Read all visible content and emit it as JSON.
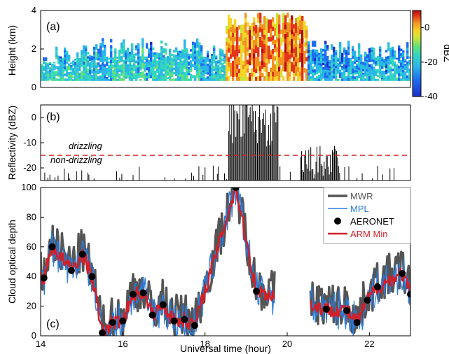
{
  "chart_data": [
    {
      "panel": "(a)",
      "type": "heatmap",
      "ylabel": "Height (km)",
      "xlim": [
        14,
        23
      ],
      "ylim": [
        0,
        4
      ],
      "yticks": [
        "0",
        "2",
        "4"
      ],
      "colorbar": {
        "label": "dBZ",
        "range": [
          -40,
          10
        ],
        "ticks": [
          "0",
          "-20",
          "-40"
        ],
        "colors": [
          "#1d2fc9",
          "#1e6ef0",
          "#2bb6e8",
          "#33d6c0",
          "#62e07a",
          "#c8e63a",
          "#f6d52a",
          "#f29221",
          "#e3351b",
          "#b00c0c"
        ]
      }
    },
    {
      "panel": "(b)",
      "type": "line",
      "ylabel": "Reflectivity (dBZ)",
      "xlim": [
        14,
        23
      ],
      "ylim": [
        -25,
        5
      ],
      "yticks": [
        "0",
        "-10",
        "-20"
      ],
      "threshold": -15,
      "threshold_color": "#d42020",
      "annotation_above": "drizzling",
      "annotation_below": "non-drizzling"
    },
    {
      "panel": "(c)",
      "type": "line",
      "ylabel": "Cloud optical depth",
      "xlabel": "Universal time (hour)",
      "xlim": [
        14,
        23
      ],
      "ylim": [
        0,
        100
      ],
      "xticks": [
        "14",
        "16",
        "18",
        "20",
        "22"
      ],
      "yticks": [
        "0",
        "20",
        "40",
        "60",
        "80",
        "100"
      ],
      "series": [
        {
          "name": "MWR",
          "color": "#555555",
          "style": "thick-line"
        },
        {
          "name": "MPL",
          "color": "#2a7de1",
          "style": "line"
        },
        {
          "name": "AERONET",
          "color": "#000000",
          "style": "dots",
          "x": [
            14.08,
            14.28,
            14.75,
            15.02,
            15.25,
            15.5,
            15.75,
            16.0,
            16.25,
            16.5,
            16.72,
            16.98,
            17.25,
            17.5,
            17.75,
            18.75,
            19.25,
            20.95,
            21.45,
            21.7,
            21.95,
            22.2,
            22.8,
            23.0
          ],
          "y": [
            39,
            60,
            44,
            55,
            40,
            2,
            9,
            10,
            28,
            29,
            14,
            21,
            10,
            11,
            7,
            100,
            30,
            18,
            17,
            9,
            24,
            33,
            42,
            28
          ]
        },
        {
          "name": "ARM Min",
          "color": "#d0202a",
          "style": "line"
        }
      ],
      "legend_position": "top-right"
    }
  ],
  "ticks": {
    "x": [
      "14",
      "16",
      "18",
      "20",
      "22"
    ],
    "a_y": [
      "0",
      "2",
      "4"
    ],
    "b_y": [
      "0",
      "-10",
      "-20"
    ],
    "c_y": [
      "0",
      "20",
      "40",
      "60",
      "80",
      "100"
    ],
    "cb": [
      "0",
      "-20",
      "-40"
    ]
  },
  "labels": {
    "a_panel": "(a)",
    "b_panel": "(b)",
    "c_panel": "(c)",
    "a_ylabel": "Height (km)",
    "b_ylabel": "Reflectivity (dBZ)",
    "c_ylabel": "Cloud optical depth",
    "xlabel": "Universal time (hour)",
    "cb_label": "dBZ",
    "drizzling": "drizzling",
    "non_drizzling": "non-drizzling"
  },
  "legend": [
    "MWR",
    "MPL",
    "AERONET",
    "ARM Min"
  ],
  "colors": {
    "mwr": "#555555",
    "mpl": "#2a7de1",
    "aeronet": "#000000",
    "armmin": "#d0202a",
    "threshold": "#d42020"
  }
}
